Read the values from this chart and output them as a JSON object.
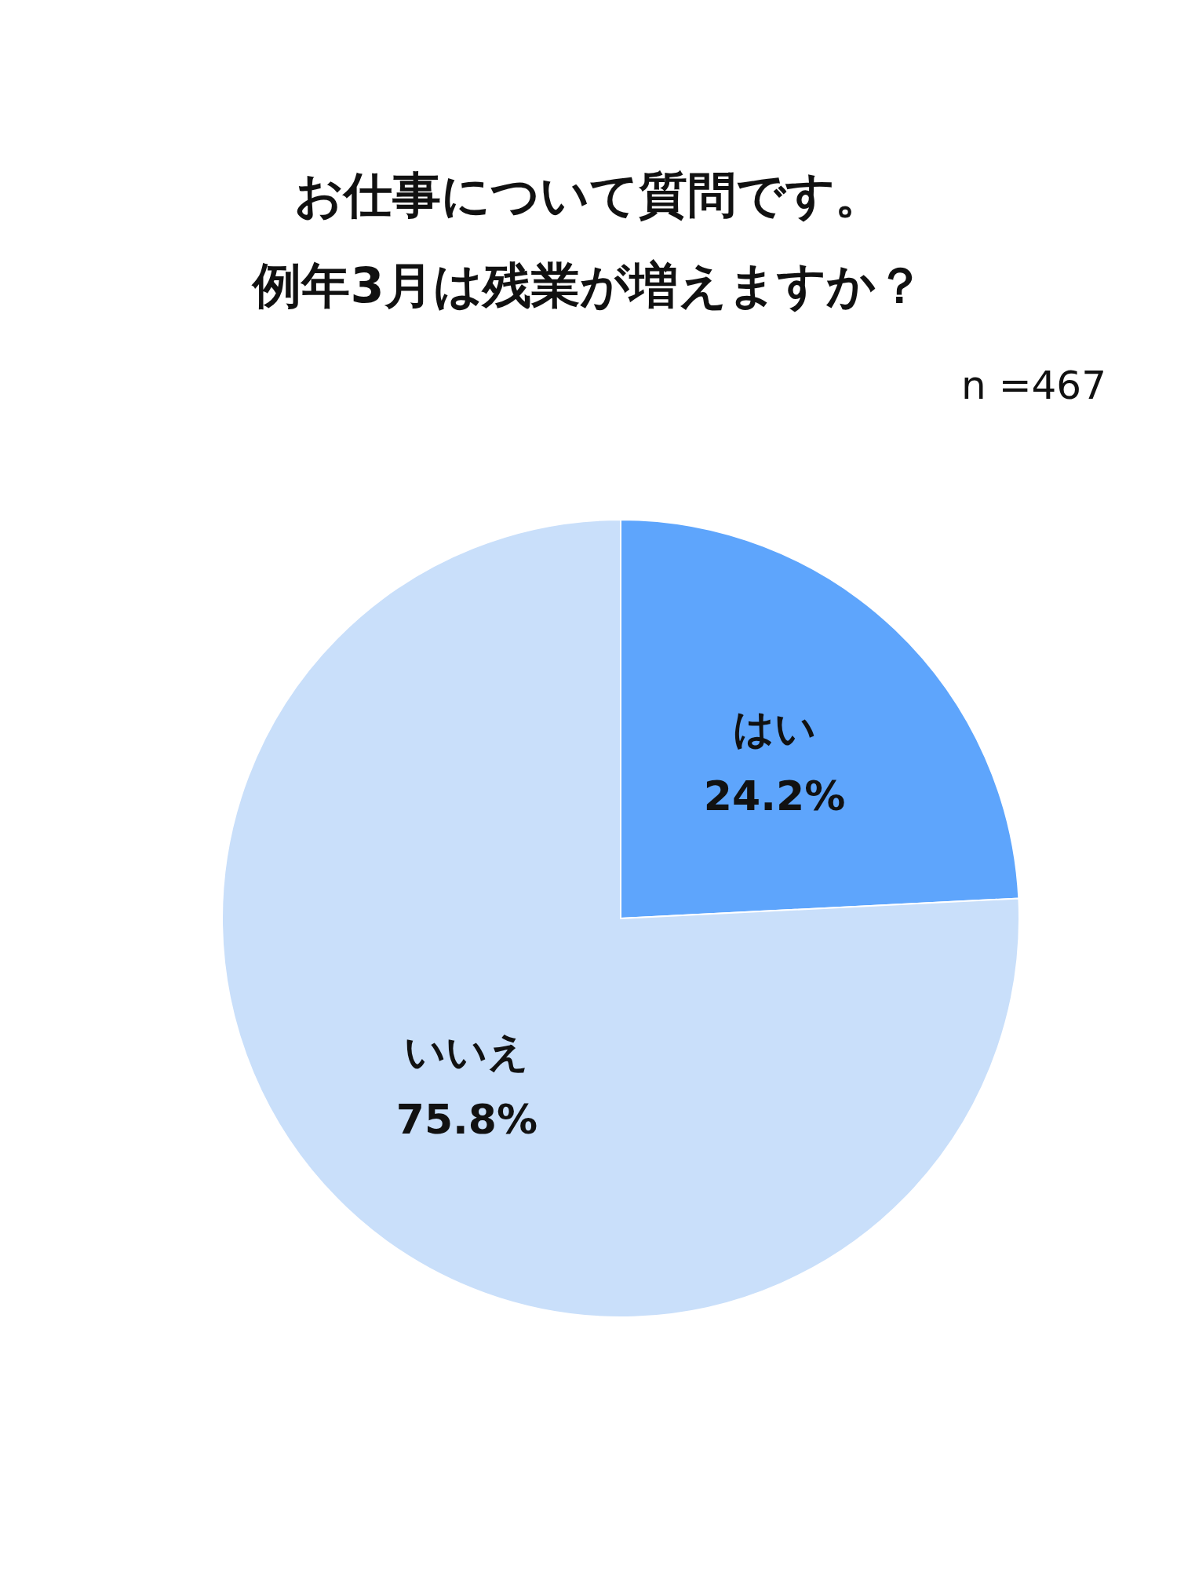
{
  "chart_data": {
    "type": "pie",
    "title": "お仕事について質問です。",
    "subtitle": "例年3月は残業が増えますか？",
    "annotations": [
      "n =467"
    ],
    "categories": [
      "はい",
      "いいえ"
    ],
    "values": [
      24.2,
      75.8
    ],
    "value_labels": [
      "24.2%",
      "75.8%"
    ],
    "colors": [
      "#5ea5fc",
      "#c9dffa"
    ]
  }
}
